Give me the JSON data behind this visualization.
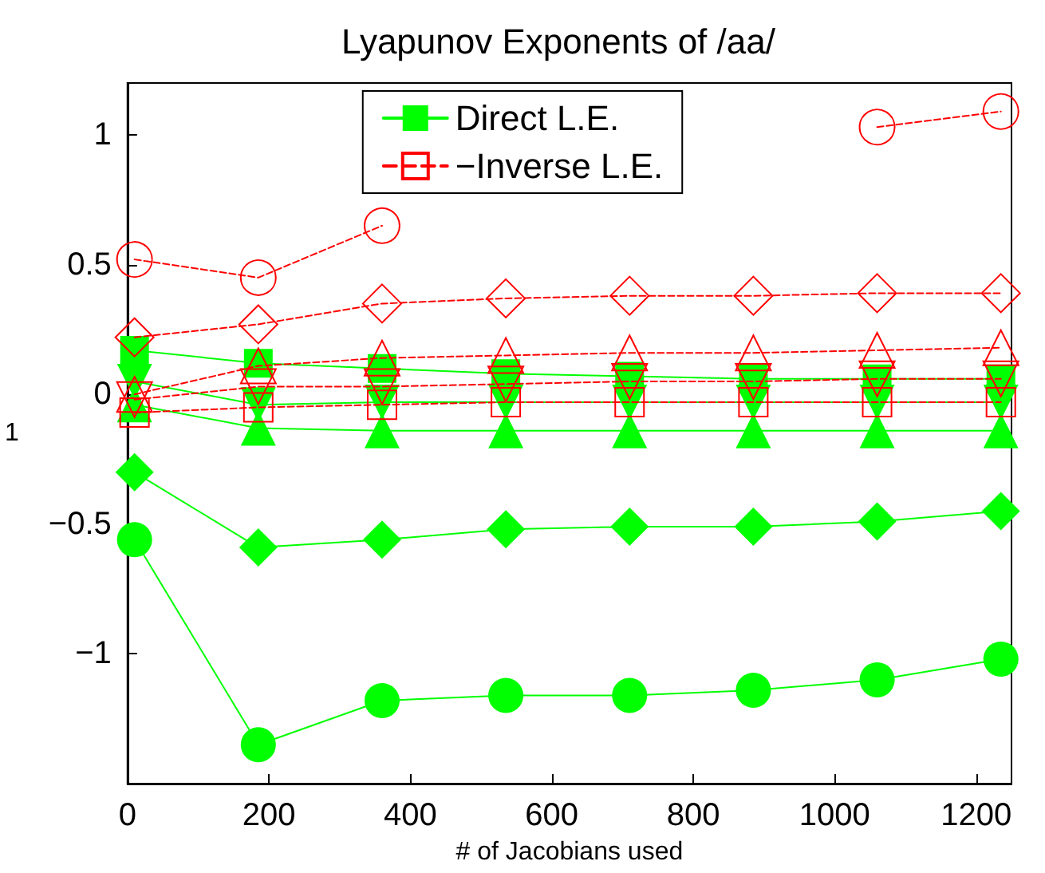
{
  "chart_data": {
    "type": "line",
    "title": "Lyapunov Exponents of /aa/",
    "xlabel": "# of Jacobians used",
    "ylabel": "1",
    "x": [
      10,
      185,
      360,
      535,
      710,
      885,
      1060,
      1235
    ],
    "xlim": [
      0,
      1250
    ],
    "xticks": [
      0,
      200,
      400,
      600,
      800,
      1000,
      1200
    ],
    "ylim": [
      -1.5,
      1.2
    ],
    "yticks": [
      {
        "value": -1,
        "label": "−1"
      },
      {
        "value": -0.5,
        "label": "−0.5"
      },
      0,
      0.5,
      1
    ],
    "grid": false,
    "legend": "top",
    "series": [
      {
        "name": "Direct L.E.",
        "color": "#00ff00",
        "marker": "square",
        "line_style": "solid",
        "values": [
          0.17,
          0.12,
          0.1,
          0.08,
          0.07,
          0.06,
          0.06,
          0.06
        ]
      },
      {
        "color": "#00ff00",
        "marker": "triangle-down",
        "line_style": "solid",
        "values": [
          0.05,
          -0.04,
          -0.03,
          -0.03,
          -0.03,
          -0.03,
          -0.03,
          -0.03
        ]
      },
      {
        "color": "#00ff00",
        "marker": "triangle",
        "line_style": "solid",
        "values": [
          -0.04,
          -0.13,
          -0.14,
          -0.14,
          -0.14,
          -0.14,
          -0.14,
          -0.14
        ]
      },
      {
        "color": "#00ff00",
        "marker": "diamond",
        "line_style": "solid",
        "values": [
          -0.3,
          -0.59,
          -0.56,
          -0.52,
          -0.51,
          -0.51,
          -0.49,
          -0.45
        ]
      },
      {
        "color": "#00ff00",
        "marker": "circle",
        "line_style": "solid",
        "values": [
          -0.56,
          -1.35,
          -1.18,
          -1.16,
          -1.16,
          -1.14,
          -1.1,
          -1.02
        ]
      },
      {
        "name": "−Inverse L.E.",
        "color": "#ff0000",
        "marker": "square",
        "line_style": "dashed",
        "values": [
          -0.07,
          -0.05,
          -0.04,
          -0.03,
          -0.03,
          -0.03,
          -0.03,
          -0.03
        ]
      },
      {
        "color": "#ff0000",
        "marker": "triangle-down",
        "line_style": "dashed",
        "values": [
          -0.02,
          0.03,
          0.03,
          0.04,
          0.05,
          0.05,
          0.06,
          0.06
        ]
      },
      {
        "color": "#ff0000",
        "marker": "triangle",
        "line_style": "dashed",
        "values": [
          0.0,
          0.11,
          0.14,
          0.15,
          0.16,
          0.16,
          0.17,
          0.18
        ]
      },
      {
        "color": "#ff0000",
        "marker": "diamond",
        "line_style": "dashed",
        "values": [
          0.22,
          0.27,
          0.35,
          0.37,
          0.38,
          0.38,
          0.39,
          0.39
        ]
      },
      {
        "color": "#ff0000",
        "marker": "circle",
        "line_style": "dashed",
        "values": [
          0.52,
          0.45,
          0.65,
          null,
          null,
          null,
          1.03,
          1.09
        ]
      }
    ]
  }
}
